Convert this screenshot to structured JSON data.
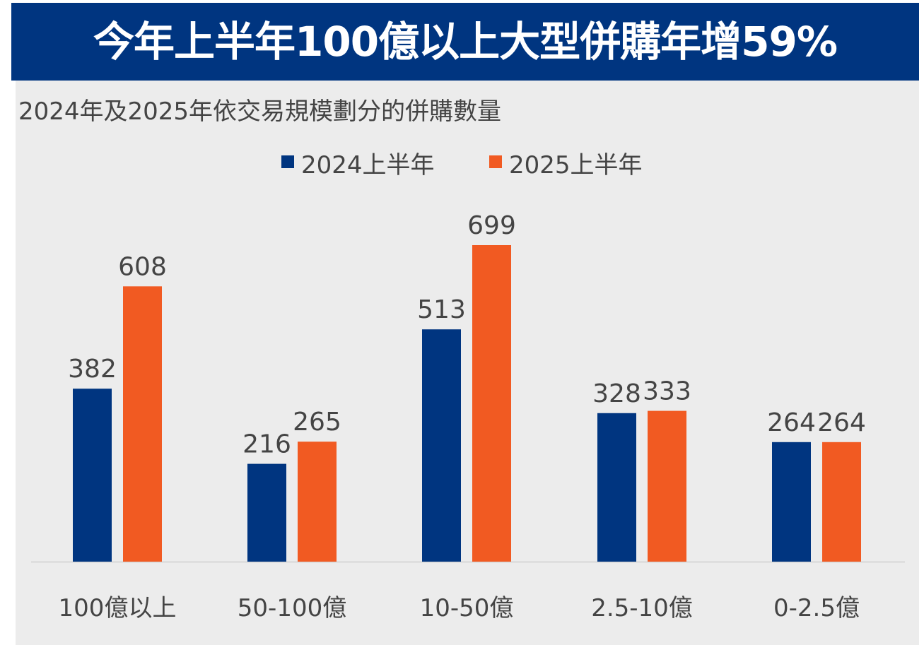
{
  "header": {
    "title": "今年上半年100億以上大型併購年增59%",
    "subtitle": "2024年及2025年依交易規模劃分的併購數量"
  },
  "colors": {
    "banner": "#003580",
    "panel": "#ececec",
    "series_2024": "#003580",
    "series_2025": "#f15a22",
    "text": "#444444"
  },
  "chart_data": {
    "type": "bar",
    "categories": [
      "100億以上",
      "50-100億",
      "10-50億",
      "2.5-10億",
      "0-2.5億"
    ],
    "series": [
      {
        "name": "2024上半年",
        "color": "#003580",
        "values": [
          382,
          216,
          513,
          328,
          264
        ]
      },
      {
        "name": "2025上半年",
        "color": "#f15a22",
        "values": [
          608,
          265,
          699,
          333,
          264
        ]
      }
    ],
    "legend_position": "top-center",
    "grid": false,
    "data_labels": true,
    "ylim": [
      0,
      730
    ]
  }
}
